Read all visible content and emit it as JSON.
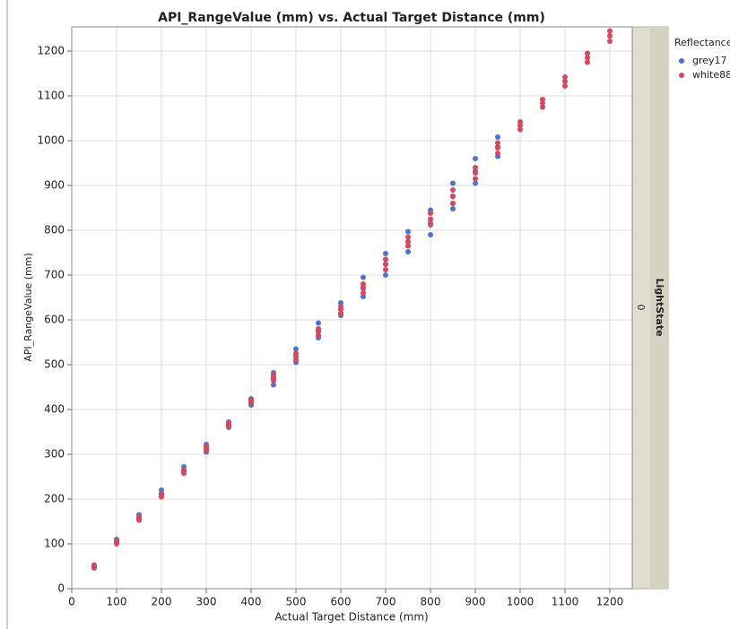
{
  "chart_data": {
    "type": "scatter",
    "title": "API_RangeValue (mm) vs. Actual Target Distance (mm)",
    "x_label": "Actual Target Distance (mm)",
    "y_label": "API_RangeValue (mm)",
    "legend_title": "Reflectance",
    "legend": "right",
    "grid": true,
    "facet": {
      "label": "LightState",
      "value": "0"
    },
    "xlim": [
      0,
      1250
    ],
    "ylim": [
      0,
      1254
    ],
    "xticks": [
      0,
      100,
      200,
      300,
      400,
      500,
      600,
      700,
      800,
      900,
      1000,
      1100,
      1200
    ],
    "yticks": [
      0,
      100,
      200,
      300,
      400,
      500,
      600,
      700,
      800,
      900,
      1000,
      1100,
      1200
    ],
    "series": [
      {
        "name": "grey17",
        "color": "#4a74d6",
        "x": [
          50,
          50,
          50,
          100,
          100,
          100,
          150,
          150,
          150,
          200,
          200,
          200,
          250,
          250,
          250,
          300,
          300,
          300,
          350,
          350,
          350,
          400,
          400,
          400,
          450,
          450,
          450,
          500,
          500,
          500,
          550,
          550,
          550,
          600,
          600,
          600,
          650,
          650,
          650,
          700,
          700,
          700,
          750,
          750,
          750,
          800,
          800,
          800,
          850,
          850,
          850,
          900,
          900,
          900,
          950,
          950,
          950
        ],
        "values": [
          46,
          50,
          53,
          102,
          106,
          110,
          155,
          160,
          165,
          207,
          213,
          220,
          258,
          265,
          272,
          305,
          313,
          322,
          360,
          366,
          372,
          410,
          417,
          424,
          455,
          468,
          482,
          505,
          520,
          535,
          560,
          576,
          593,
          610,
          624,
          638,
          652,
          673,
          695,
          700,
          724,
          748,
          752,
          774,
          797,
          790,
          817,
          845,
          848,
          876,
          905,
          905,
          932,
          960,
          965,
          986,
          1008
        ]
      },
      {
        "name": "white88",
        "color": "#d9475f",
        "x": [
          50,
          50,
          50,
          100,
          100,
          100,
          150,
          150,
          150,
          200,
          200,
          200,
          250,
          250,
          250,
          300,
          300,
          300,
          350,
          350,
          350,
          400,
          400,
          400,
          450,
          450,
          450,
          500,
          500,
          500,
          550,
          550,
          550,
          600,
          600,
          600,
          650,
          650,
          650,
          700,
          700,
          700,
          750,
          750,
          750,
          800,
          800,
          800,
          850,
          850,
          850,
          900,
          900,
          900,
          950,
          950,
          950,
          1000,
          1000,
          1000,
          1050,
          1050,
          1050,
          1100,
          1100,
          1100,
          1150,
          1150,
          1150,
          1200,
          1200,
          1200
        ],
        "values": [
          47,
          50,
          52,
          100,
          104,
          107,
          153,
          157,
          160,
          205,
          209,
          212,
          258,
          262,
          265,
          308,
          313,
          318,
          362,
          366,
          370,
          415,
          419,
          422,
          465,
          471,
          477,
          510,
          518,
          525,
          565,
          573,
          580,
          615,
          623,
          630,
          660,
          670,
          680,
          712,
          724,
          735,
          765,
          775,
          785,
          812,
          825,
          838,
          860,
          875,
          890,
          915,
          928,
          940,
          972,
          984,
          995,
          1025,
          1034,
          1042,
          1075,
          1084,
          1092,
          1122,
          1132,
          1142,
          1175,
          1185,
          1195,
          1222,
          1234,
          1245
        ]
      }
    ]
  }
}
